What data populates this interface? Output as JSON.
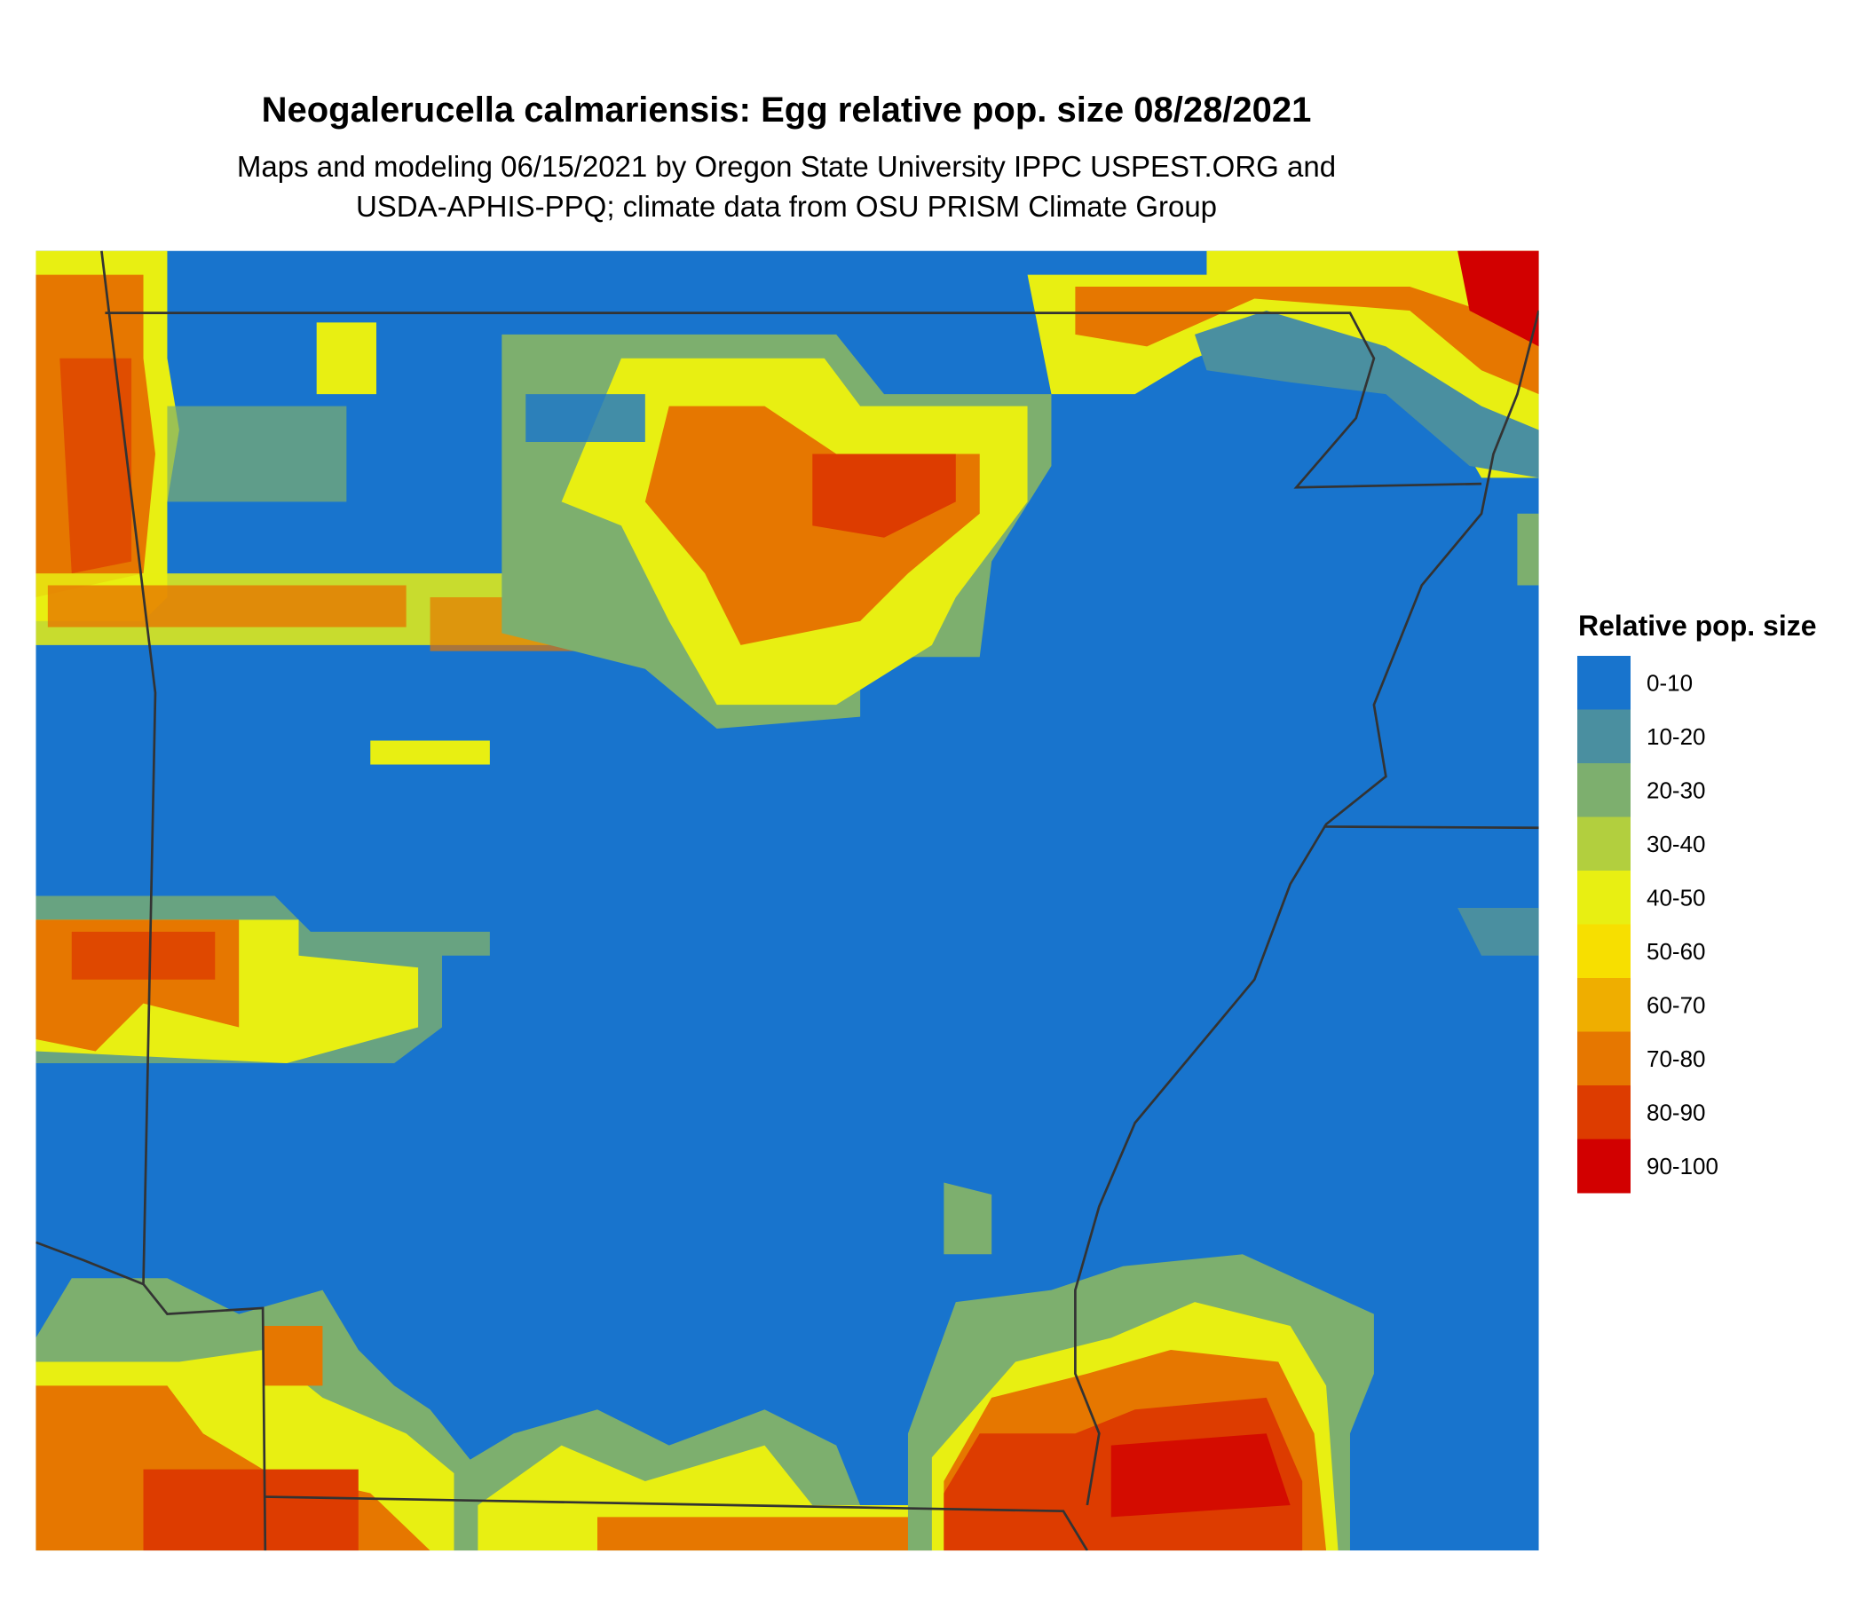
{
  "title": "Neogalerucella calmariensis: Egg relative pop. size 08/28/2021",
  "subtitle_lines": [
    "Maps and modeling 06/15/2021 by Oregon State University IPPC USPEST.ORG and",
    "USDA-APHIS-PPQ; climate data from OSU PRISM Climate Group"
  ],
  "legend": {
    "title": "Relative pop. size",
    "items": [
      {
        "label": "0-10",
        "color": "#1874cd"
      },
      {
        "label": "10-20",
        "color": "#4a8fa0"
      },
      {
        "label": "20-30",
        "color": "#7daf6e"
      },
      {
        "label": "30-40",
        "color": "#b2cf3e"
      },
      {
        "label": "40-50",
        "color": "#e8ef12"
      },
      {
        "label": "50-60",
        "color": "#f7df00"
      },
      {
        "label": "60-70",
        "color": "#efae00"
      },
      {
        "label": "70-80",
        "color": "#e67700"
      },
      {
        "label": "80-90",
        "color": "#dd3c00"
      },
      {
        "label": "90-100",
        "color": "#d20000"
      }
    ]
  }
}
